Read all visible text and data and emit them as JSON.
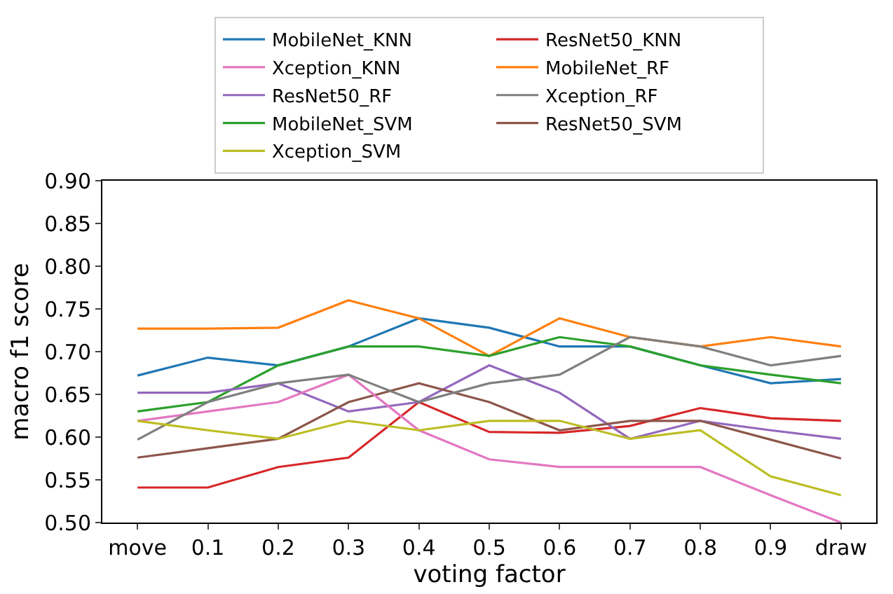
{
  "chart_data": {
    "type": "line",
    "xlabel": "voting factor",
    "ylabel": "macro f1 score",
    "categories": [
      "move",
      "0.1",
      "0.2",
      "0.3",
      "0.4",
      "0.5",
      "0.6",
      "0.7",
      "0.8",
      "0.9",
      "draw"
    ],
    "ylim": [
      0.5,
      0.9
    ],
    "yticks": [
      {
        "value": 0.5,
        "label": "0.50"
      },
      {
        "value": 0.55,
        "label": "0.55"
      },
      {
        "value": 0.6,
        "label": "0.60"
      },
      {
        "value": 0.65,
        "label": "0.65"
      },
      {
        "value": 0.7,
        "label": "0.70"
      },
      {
        "value": 0.75,
        "label": "0.75"
      },
      {
        "value": 0.8,
        "label": "0.80"
      },
      {
        "value": 0.85,
        "label": "0.85"
      },
      {
        "value": 0.9,
        "label": "0.90"
      }
    ],
    "grid": false,
    "legend": "top",
    "marker": "none",
    "line_style": "solid",
    "series": [
      {
        "name": "MobileNet_KNN",
        "color": "#1f77b4",
        "values": [
          0.672,
          0.693,
          0.684,
          0.706,
          0.739,
          0.728,
          0.706,
          0.706,
          0.684,
          0.663,
          0.668
        ]
      },
      {
        "name": "MobileNet_RF",
        "color": "#ff7f0e",
        "values": [
          0.727,
          0.727,
          0.728,
          0.76,
          0.739,
          0.695,
          0.739,
          0.717,
          0.706,
          0.717,
          0.706
        ]
      },
      {
        "name": "MobileNet_SVM",
        "color": "#2ca02c",
        "values": [
          0.63,
          0.641,
          0.684,
          0.706,
          0.706,
          0.695,
          0.717,
          0.706,
          0.684,
          0.673,
          0.663
        ]
      },
      {
        "name": "ResNet50_KNN",
        "color": "#d62728",
        "values": [
          0.541,
          0.541,
          0.565,
          0.576,
          0.641,
          0.606,
          0.605,
          0.613,
          0.634,
          0.622,
          0.619
        ]
      },
      {
        "name": "ResNet50_RF",
        "color": "#9467bd",
        "values": [
          0.652,
          0.652,
          0.663,
          0.63,
          0.641,
          0.684,
          0.652,
          0.598,
          0.619,
          0.608,
          0.598
        ]
      },
      {
        "name": "ResNet50_SVM",
        "color": "#8c564b",
        "values": [
          0.576,
          0.587,
          0.598,
          0.641,
          0.663,
          0.641,
          0.608,
          0.619,
          0.619,
          0.597,
          0.575
        ]
      },
      {
        "name": "Xception_KNN",
        "color": "#e377c2",
        "values": [
          0.619,
          0.63,
          0.641,
          0.673,
          0.608,
          0.574,
          0.565,
          0.565,
          0.565,
          0.532,
          0.5
        ]
      },
      {
        "name": "Xception_RF",
        "color": "#7f7f7f",
        "values": [
          0.597,
          0.641,
          0.663,
          0.673,
          0.641,
          0.663,
          0.673,
          0.717,
          0.706,
          0.684,
          0.695
        ]
      },
      {
        "name": "Xception_SVM",
        "color": "#bcbd22",
        "values": [
          0.619,
          0.608,
          0.598,
          0.619,
          0.608,
          0.619,
          0.619,
          0.598,
          0.608,
          0.554,
          0.532
        ]
      }
    ]
  }
}
